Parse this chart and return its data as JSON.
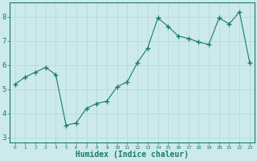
{
  "x": [
    0,
    1,
    2,
    3,
    4,
    5,
    6,
    7,
    8,
    9,
    10,
    11,
    12,
    13,
    14,
    15,
    16,
    17,
    18,
    19,
    20,
    21,
    22,
    23
  ],
  "y": [
    5.2,
    5.5,
    5.7,
    5.9,
    5.6,
    3.5,
    3.6,
    4.2,
    4.4,
    4.5,
    5.1,
    5.3,
    6.1,
    6.7,
    7.95,
    7.6,
    7.2,
    7.1,
    6.95,
    6.85,
    7.95,
    7.7,
    8.2,
    6.1
  ],
  "line_color": "#1a7a6e",
  "marker": "+",
  "marker_size": 4,
  "bg_color": "#cceaea",
  "grid_color": "#b0d8d8",
  "xlabel": "Humidex (Indice chaleur)",
  "xlabel_fontsize": 7,
  "xlabel_color": "#1a7a6e",
  "tick_color": "#1a7a6e",
  "ylim": [
    2.8,
    8.6
  ],
  "xlim": [
    -0.5,
    23.5
  ],
  "yticks": [
    3,
    4,
    5,
    6,
    7,
    8
  ],
  "xticks": [
    0,
    1,
    2,
    3,
    4,
    5,
    6,
    7,
    8,
    9,
    10,
    11,
    12,
    13,
    14,
    15,
    16,
    17,
    18,
    19,
    20,
    21,
    22,
    23
  ]
}
